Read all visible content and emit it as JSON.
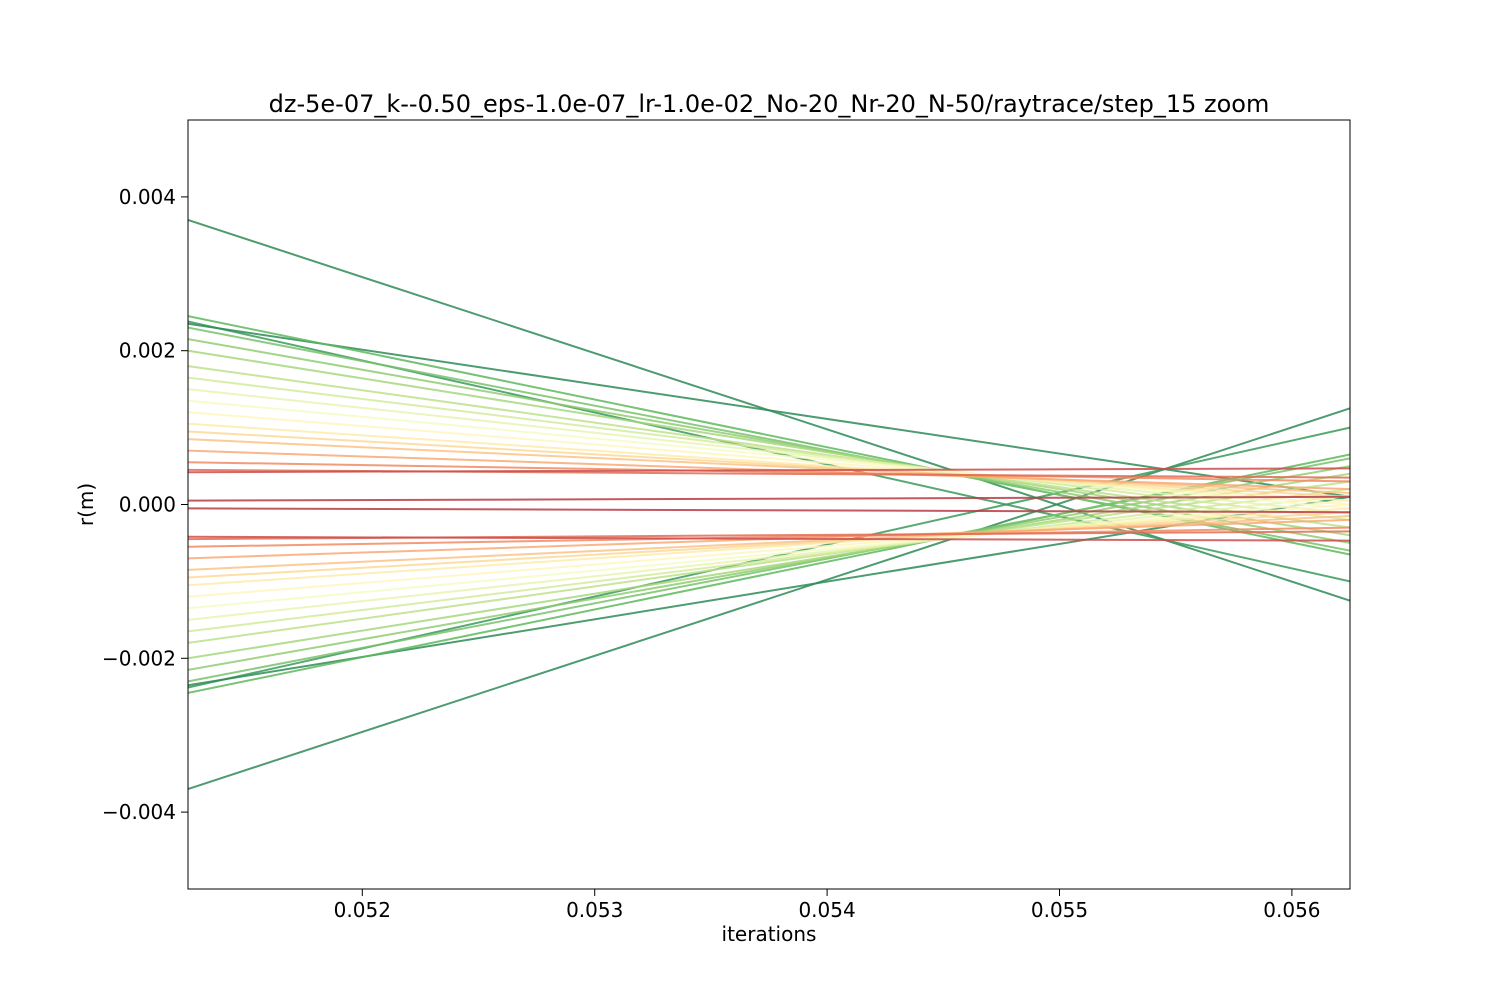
{
  "chart_data": {
    "type": "line",
    "title": "dz-5e-07_k--0.50_eps-1.0e-07_lr-1.0e-02_No-20_Nr-20_N-50/raytrace/step_15 zoom",
    "xlabel": "iterations",
    "ylabel": "r(m)",
    "xlim": [
      0.05125,
      0.05625
    ],
    "ylim": [
      -0.005,
      0.005
    ],
    "grid": false,
    "legend": false,
    "x_ticks": [
      "0.052",
      "0.053",
      "0.054",
      "0.055",
      "0.056"
    ],
    "x_tick_values": [
      0.052,
      0.053,
      0.054,
      0.055,
      0.056
    ],
    "y_ticks": [
      "−0.004",
      "−0.002",
      "0.000",
      "0.002",
      "0.004"
    ],
    "y_tick_values": [
      -0.004,
      -0.002,
      0.0,
      0.002,
      0.004
    ],
    "series": [
      {
        "color": "#2e8b57",
        "x": [
          0.05125,
          0.05625
        ],
        "y": [
          0.0037,
          -0.00125
        ]
      },
      {
        "color": "#2e8b57",
        "x": [
          0.05125,
          0.05625
        ],
        "y": [
          -0.0037,
          0.00125
        ]
      },
      {
        "color": "#3a9a5b",
        "x": [
          0.05125,
          0.05625
        ],
        "y": [
          0.00238,
          -0.001
        ]
      },
      {
        "color": "#3a9a5b",
        "x": [
          0.05125,
          0.05625
        ],
        "y": [
          -0.00238,
          0.001
        ]
      },
      {
        "color": "#2e8b57",
        "x": [
          0.05125,
          0.05625
        ],
        "y": [
          0.00235,
          0.0001
        ]
      },
      {
        "color": "#2e8b57",
        "x": [
          0.05125,
          0.05625
        ],
        "y": [
          -0.00235,
          0.0001
        ]
      },
      {
        "color": "#5db85d",
        "x": [
          0.05125,
          0.05625
        ],
        "y": [
          0.00245,
          -0.00065
        ]
      },
      {
        "color": "#5db85d",
        "x": [
          0.05125,
          0.05625
        ],
        "y": [
          -0.00245,
          0.00065
        ]
      },
      {
        "color": "#78c26b",
        "x": [
          0.05125,
          0.05625
        ],
        "y": [
          0.0023,
          -0.0006
        ]
      },
      {
        "color": "#78c26b",
        "x": [
          0.05125,
          0.05625
        ],
        "y": [
          -0.0023,
          0.0006
        ]
      },
      {
        "color": "#8fcc72",
        "x": [
          0.05125,
          0.05625
        ],
        "y": [
          0.00215,
          -0.0005
        ]
      },
      {
        "color": "#8fcc72",
        "x": [
          0.05125,
          0.05625
        ],
        "y": [
          -0.00215,
          0.0005
        ]
      },
      {
        "color": "#a6d77d",
        "x": [
          0.05125,
          0.05625
        ],
        "y": [
          0.002,
          -0.0004
        ]
      },
      {
        "color": "#a6d77d",
        "x": [
          0.05125,
          0.05625
        ],
        "y": [
          -0.002,
          0.0004
        ]
      },
      {
        "color": "#bde18a",
        "x": [
          0.05125,
          0.05625
        ],
        "y": [
          0.0018,
          -0.0003
        ]
      },
      {
        "color": "#bde18a",
        "x": [
          0.05125,
          0.05625
        ],
        "y": [
          -0.0018,
          0.0003
        ]
      },
      {
        "color": "#d3eb9c",
        "x": [
          0.05125,
          0.05625
        ],
        "y": [
          0.00165,
          -0.0002
        ]
      },
      {
        "color": "#d3eb9c",
        "x": [
          0.05125,
          0.05625
        ],
        "y": [
          -0.00165,
          0.0002
        ]
      },
      {
        "color": "#e7f3b0",
        "x": [
          0.05125,
          0.05625
        ],
        "y": [
          0.0015,
          -0.00012
        ]
      },
      {
        "color": "#e7f3b0",
        "x": [
          0.05125,
          0.05625
        ],
        "y": [
          -0.0015,
          0.00012
        ]
      },
      {
        "color": "#f6fbc4",
        "x": [
          0.05125,
          0.05625
        ],
        "y": [
          0.00135,
          -5e-05
        ]
      },
      {
        "color": "#f6fbc4",
        "x": [
          0.05125,
          0.05625
        ],
        "y": [
          -0.00135,
          5e-05
        ]
      },
      {
        "color": "#fff6be",
        "x": [
          0.05125,
          0.05625
        ],
        "y": [
          0.0012,
          0.0
        ]
      },
      {
        "color": "#fff6be",
        "x": [
          0.05125,
          0.05625
        ],
        "y": [
          -0.0012,
          0.0
        ]
      },
      {
        "color": "#feebaa",
        "x": [
          0.05125,
          0.05625
        ],
        "y": [
          0.00105,
          5e-05
        ]
      },
      {
        "color": "#feebaa",
        "x": [
          0.05125,
          0.05625
        ],
        "y": [
          -0.00105,
          -5e-05
        ]
      },
      {
        "color": "#fdd898",
        "x": [
          0.05125,
          0.05625
        ],
        "y": [
          0.00095,
          0.0001
        ]
      },
      {
        "color": "#fdd898",
        "x": [
          0.05125,
          0.05625
        ],
        "y": [
          -0.00095,
          -0.0001
        ]
      },
      {
        "color": "#fcc285",
        "x": [
          0.05125,
          0.05625
        ],
        "y": [
          0.00085,
          0.00015
        ]
      },
      {
        "color": "#fcc285",
        "x": [
          0.05125,
          0.05625
        ],
        "y": [
          -0.00085,
          -0.00015
        ]
      },
      {
        "color": "#f9a974",
        "x": [
          0.05125,
          0.05625
        ],
        "y": [
          0.0007,
          0.0002
        ]
      },
      {
        "color": "#f9a974",
        "x": [
          0.05125,
          0.05625
        ],
        "y": [
          -0.0007,
          -0.0002
        ]
      },
      {
        "color": "#f18b61",
        "x": [
          0.05125,
          0.05625
        ],
        "y": [
          0.00055,
          0.0003
        ]
      },
      {
        "color": "#f18b61",
        "x": [
          0.05125,
          0.05625
        ],
        "y": [
          -0.00055,
          -0.0003
        ]
      },
      {
        "color": "#e06c55",
        "x": [
          0.05125,
          0.05625
        ],
        "y": [
          0.00045,
          0.00035
        ]
      },
      {
        "color": "#e06c55",
        "x": [
          0.05125,
          0.05625
        ],
        "y": [
          -0.00045,
          -0.00035
        ]
      },
      {
        "color": "#cc4c4c",
        "x": [
          0.05125,
          0.05625
        ],
        "y": [
          0.00042,
          0.00047
        ]
      },
      {
        "color": "#cc4c4c",
        "x": [
          0.05125,
          0.05625
        ],
        "y": [
          -0.00042,
          -0.00047
        ]
      },
      {
        "color": "#b73c47",
        "x": [
          0.05125,
          0.05625
        ],
        "y": [
          5e-05,
          0.0001
        ]
      },
      {
        "color": "#b73c47",
        "x": [
          0.05125,
          0.05625
        ],
        "y": [
          -5e-05,
          -0.0001
        ]
      }
    ]
  }
}
